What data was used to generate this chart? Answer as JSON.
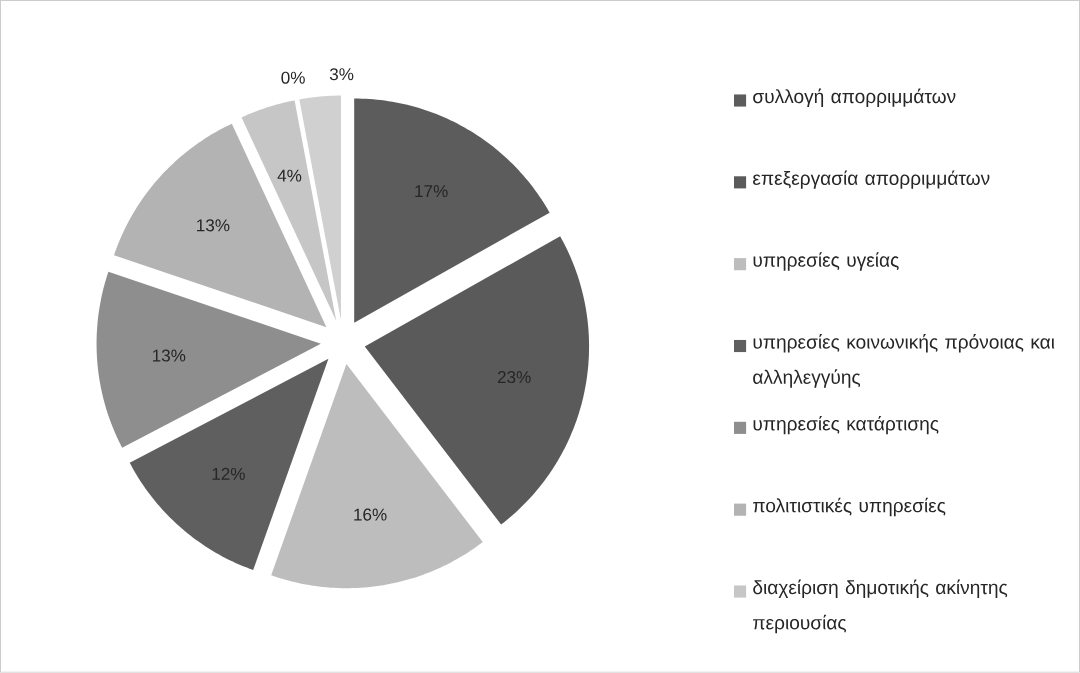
{
  "chart_data": {
    "type": "pie",
    "categories": [
      "συλλογή απορριμμάτων",
      "επεξεργασία απορριμμάτων",
      "υπηρεσίες υγείας",
      "υπηρεσίες κοινωνικής πρόνοιας και αλληλεγγύης",
      "υπηρεσίες κατάρτισης",
      "πολιτιστικές υπηρεσίες",
      "διαχείριση δημοτικής ακίνητης περιουσίας",
      null,
      null
    ],
    "values": [
      17,
      23,
      16,
      12,
      13,
      13,
      4,
      0,
      3
    ],
    "value_labels": [
      "17%",
      "23%",
      "16%",
      "12%",
      "13%",
      "13%",
      "4%",
      "0%",
      "3%"
    ],
    "colors": [
      "#5c5c5c",
      "#5a5a5a",
      "#bdbdbd",
      "#5f5f5f",
      "#8e8e8e",
      "#b3b3b3",
      "#c6c6c6",
      "#d4d4d4",
      "#d0d0d0"
    ],
    "legend": "right"
  }
}
